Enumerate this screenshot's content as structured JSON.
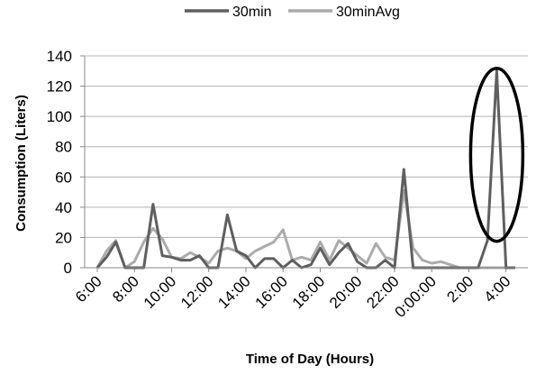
{
  "chart_data": {
    "type": "line",
    "title": "",
    "xlabel": "Time of Day (Hours)",
    "ylabel": "Consumption (Liters)",
    "ylim": [
      0,
      140
    ],
    "yticks": [
      0,
      20,
      40,
      60,
      80,
      100,
      120,
      140
    ],
    "grid": "horizontal",
    "legend_position": "top",
    "x_tick_labels": [
      "6:00",
      "8:00",
      "10:00",
      "12:00",
      "14:00",
      "16:00",
      "18:00",
      "20:00",
      "22:00",
      "0:00:00",
      "2:00",
      "4:00"
    ],
    "x": [
      "6:00",
      "6:30",
      "7:00",
      "7:30",
      "8:00",
      "8:30",
      "9:00",
      "9:30",
      "10:00",
      "10:30",
      "11:00",
      "11:30",
      "12:00",
      "12:30",
      "13:00",
      "13:30",
      "14:00",
      "14:30",
      "15:00",
      "15:30",
      "16:00",
      "16:30",
      "17:00",
      "17:30",
      "18:00",
      "18:30",
      "19:00",
      "19:30",
      "20:00",
      "20:30",
      "21:00",
      "21:30",
      "22:00",
      "22:30",
      "23:00",
      "23:30",
      "0:00",
      "0:30",
      "1:00",
      "1:30",
      "2:00",
      "2:30",
      "3:00",
      "3:30",
      "4:00",
      "4:30"
    ],
    "series": [
      {
        "name": "30min",
        "color": "#5f5f5f",
        "values": [
          0,
          7,
          17,
          0,
          0,
          0,
          42,
          8,
          7,
          5,
          5,
          8,
          0,
          0,
          35,
          11,
          8,
          0,
          6,
          6,
          0,
          5,
          0,
          2,
          13,
          2,
          10,
          16,
          4,
          0,
          0,
          5,
          0,
          65,
          0,
          0,
          0,
          0,
          0,
          0,
          0,
          0,
          18,
          130,
          0,
          0
        ]
      },
      {
        "name": "30minAvg",
        "color": "#ababab",
        "values": [
          0,
          11,
          18,
          0,
          4,
          17,
          26,
          19,
          7,
          6,
          10,
          7,
          3,
          11,
          13,
          11,
          6,
          11,
          14,
          17,
          25,
          5,
          7,
          5,
          17,
          5,
          18,
          13,
          8,
          3,
          16,
          7,
          5,
          51,
          13,
          5,
          3,
          4,
          2,
          0,
          0,
          0,
          0,
          0,
          0,
          0
        ]
      }
    ],
    "annotation": {
      "shape": "ellipse",
      "around_point": "3:30",
      "color": "#000000"
    }
  }
}
